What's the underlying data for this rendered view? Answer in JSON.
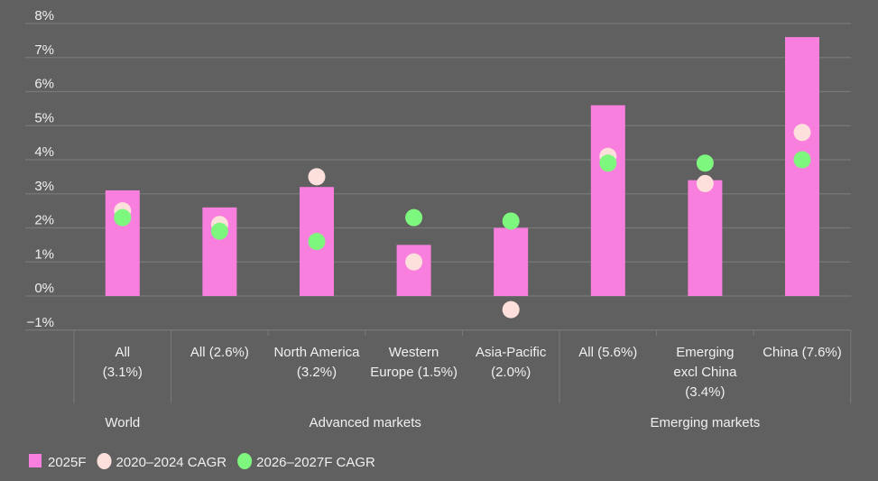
{
  "chart_data": {
    "type": "bar",
    "title": "",
    "xlabel": "",
    "ylabel": "",
    "ylim": [
      -1,
      8
    ],
    "yticks": [
      "−1%",
      "0%",
      "1%",
      "2%",
      "3%",
      "4%",
      "5%",
      "6%",
      "7%",
      "8%"
    ],
    "grid": true,
    "legend_position": "bottom-left",
    "categories": [
      "All\n(3.1%)",
      "All (2.6%)",
      "North America\n(3.2%)",
      "Western\nEurope (1.5%)",
      "Asia-Pacific\n(2.0%)",
      "All (5.6%)",
      "Emerging\nexcl China\n(3.4%)",
      "China (7.6%)"
    ],
    "groups": [
      {
        "label": "World",
        "count": 1
      },
      {
        "label": "Advanced markets",
        "count": 4
      },
      {
        "label": "Emerging markets",
        "count": 3
      }
    ],
    "series": [
      {
        "name": "2025F",
        "kind": "bar",
        "color": "#f97fdf",
        "values": [
          3.1,
          2.6,
          3.2,
          1.5,
          2.0,
          5.6,
          3.4,
          7.6
        ]
      },
      {
        "name": "2020–2024 CAGR",
        "kind": "dot",
        "color": "#fde0dc",
        "values": [
          2.5,
          2.1,
          3.5,
          1.0,
          -0.4,
          4.1,
          3.3,
          4.8
        ]
      },
      {
        "name": "2026–2027F CAGR",
        "kind": "dot",
        "color": "#7ef77e",
        "values": [
          2.3,
          1.9,
          1.6,
          2.3,
          2.2,
          3.9,
          3.9,
          4.0
        ]
      }
    ]
  }
}
